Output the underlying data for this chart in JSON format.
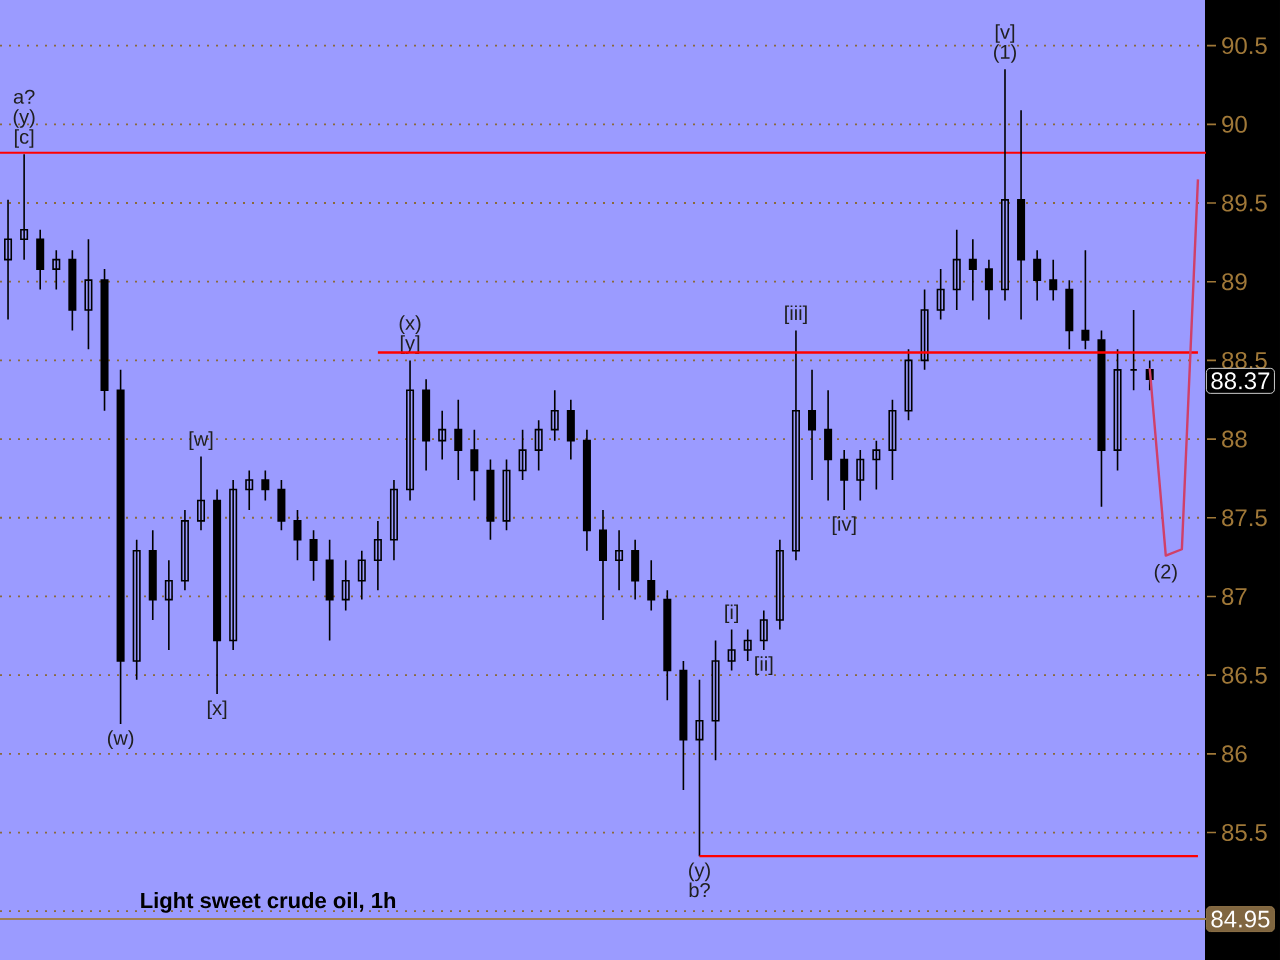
{
  "chart_data": {
    "type": "candlestick",
    "title": "Light sweet crude oil, 1h",
    "categories": [
      null,
      null,
      null,
      null,
      null,
      null,
      null,
      null,
      null,
      null,
      null,
      null,
      null,
      null,
      null,
      null,
      null,
      null,
      null,
      null,
      null,
      null,
      null,
      null,
      null,
      null,
      null,
      null,
      null,
      null,
      null,
      null,
      null,
      null,
      null,
      null,
      null,
      null,
      null,
      null,
      null,
      null,
      null,
      null,
      null,
      null,
      null,
      null,
      null,
      null,
      null,
      null,
      null,
      null,
      null,
      null,
      null,
      null,
      null,
      null,
      null,
      null,
      null,
      null,
      null,
      null,
      null,
      null,
      null,
      null,
      null,
      null,
      null,
      null,
      null
    ],
    "ohlc": [
      [
        89.14,
        89.52,
        88.76,
        89.27
      ],
      [
        89.27,
        89.81,
        89.14,
        89.33
      ],
      [
        89.27,
        89.33,
        88.95,
        89.08
      ],
      [
        89.08,
        89.2,
        88.95,
        89.14
      ],
      [
        89.14,
        89.2,
        88.69,
        88.82
      ],
      [
        88.82,
        89.27,
        88.57,
        89.01
      ],
      [
        89.01,
        89.08,
        88.18,
        88.31
      ],
      [
        88.31,
        88.44,
        86.19,
        86.59
      ],
      [
        86.59,
        87.36,
        86.47,
        87.29
      ],
      [
        87.29,
        87.42,
        86.85,
        86.98
      ],
      [
        86.98,
        87.23,
        86.66,
        87.1
      ],
      [
        87.1,
        87.55,
        87.04,
        87.48
      ],
      [
        87.48,
        87.89,
        87.42,
        87.61
      ],
      [
        87.61,
        87.68,
        86.38,
        86.72
      ],
      [
        86.72,
        87.74,
        86.66,
        87.68
      ],
      [
        87.68,
        87.8,
        87.55,
        87.74
      ],
      [
        87.74,
        87.8,
        87.61,
        87.68
      ],
      [
        87.68,
        87.74,
        87.42,
        87.48
      ],
      [
        87.48,
        87.55,
        87.23,
        87.36
      ],
      [
        87.36,
        87.42,
        87.1,
        87.23
      ],
      [
        87.23,
        87.36,
        86.72,
        86.98
      ],
      [
        86.98,
        87.23,
        86.91,
        87.1
      ],
      [
        87.1,
        87.29,
        86.98,
        87.23
      ],
      [
        87.23,
        87.48,
        87.04,
        87.36
      ],
      [
        87.36,
        87.74,
        87.23,
        87.68
      ],
      [
        87.68,
        88.5,
        87.61,
        88.31
      ],
      [
        88.31,
        88.38,
        87.8,
        87.99
      ],
      [
        87.99,
        88.18,
        87.87,
        88.06
      ],
      [
        88.06,
        88.25,
        87.74,
        87.93
      ],
      [
        87.93,
        88.06,
        87.61,
        87.8
      ],
      [
        87.8,
        87.87,
        87.36,
        87.48
      ],
      [
        87.48,
        87.87,
        87.42,
        87.8
      ],
      [
        87.8,
        88.06,
        87.74,
        87.93
      ],
      [
        87.93,
        88.12,
        87.8,
        88.06
      ],
      [
        88.06,
        88.31,
        87.99,
        88.18
      ],
      [
        88.18,
        88.25,
        87.87,
        87.99
      ],
      [
        87.99,
        88.06,
        87.29,
        87.42
      ],
      [
        87.42,
        87.55,
        86.85,
        87.23
      ],
      [
        87.23,
        87.42,
        87.04,
        87.29
      ],
      [
        87.29,
        87.36,
        86.98,
        87.1
      ],
      [
        87.1,
        87.23,
        86.91,
        86.98
      ],
      [
        86.98,
        87.04,
        86.34,
        86.53
      ],
      [
        86.53,
        86.59,
        85.77,
        86.09
      ],
      [
        86.09,
        86.47,
        85.35,
        86.21
      ],
      [
        86.21,
        86.72,
        85.96,
        86.59
      ],
      [
        86.59,
        86.79,
        86.53,
        86.66
      ],
      [
        86.66,
        86.79,
        86.59,
        86.72
      ],
      [
        86.72,
        86.91,
        86.66,
        86.85
      ],
      [
        86.85,
        87.36,
        86.79,
        87.29
      ],
      [
        87.29,
        88.69,
        87.23,
        88.18
      ],
      [
        88.18,
        88.44,
        87.74,
        88.06
      ],
      [
        88.06,
        88.31,
        87.61,
        87.87
      ],
      [
        87.87,
        87.93,
        87.55,
        87.74
      ],
      [
        87.74,
        87.93,
        87.61,
        87.87
      ],
      [
        87.87,
        87.99,
        87.68,
        87.93
      ],
      [
        87.93,
        88.25,
        87.74,
        88.18
      ],
      [
        88.18,
        88.57,
        88.12,
        88.5
      ],
      [
        88.5,
        88.95,
        88.44,
        88.82
      ],
      [
        88.82,
        89.08,
        88.76,
        88.95
      ],
      [
        88.95,
        89.33,
        88.82,
        89.14
      ],
      [
        89.14,
        89.27,
        88.88,
        89.08
      ],
      [
        89.08,
        89.14,
        88.76,
        88.95
      ],
      [
        88.95,
        90.35,
        88.88,
        89.52
      ],
      [
        89.52,
        90.09,
        88.76,
        89.14
      ],
      [
        89.14,
        89.2,
        88.88,
        89.01
      ],
      [
        89.01,
        89.14,
        88.88,
        88.95
      ],
      [
        88.95,
        89.01,
        88.57,
        88.69
      ],
      [
        88.69,
        89.2,
        88.57,
        88.63
      ],
      [
        88.63,
        88.69,
        87.57,
        87.93
      ],
      [
        87.93,
        88.57,
        87.8,
        88.44
      ],
      [
        88.44,
        88.82,
        88.31,
        88.44
      ],
      [
        88.44,
        88.5,
        88.31,
        88.38
      ],
      null,
      null,
      null
    ],
    "value_labels": [
      null,
      "a? (y) [c]",
      null,
      null,
      null,
      null,
      null,
      "(w)",
      null,
      null,
      null,
      null,
      "[w]",
      "[x]",
      null,
      null,
      null,
      null,
      null,
      null,
      null,
      null,
      null,
      null,
      null,
      "(x) [y]",
      null,
      null,
      null,
      null,
      null,
      null,
      null,
      null,
      null,
      null,
      null,
      null,
      null,
      null,
      null,
      null,
      null,
      "(y) b?",
      null,
      "[i]",
      null,
      "[ii]",
      null,
      "[iii]",
      null,
      null,
      "[iv]",
      null,
      null,
      null,
      null,
      null,
      null,
      null,
      null,
      null,
      "[v] (1)",
      null,
      null,
      null,
      null,
      null,
      null,
      null,
      null,
      null,
      null,
      null,
      null
    ],
    "color": "#000000",
    "series": [
      {
        "type": "line",
        "color": "#ff0000",
        "values": [
          null,
          null,
          null,
          null,
          null,
          null,
          null,
          null,
          null,
          null,
          null,
          null,
          null,
          null,
          null,
          null,
          null,
          null,
          null,
          null,
          null,
          null,
          null,
          88.55,
          88.55,
          88.55,
          88.55,
          88.55,
          88.55,
          88.55,
          88.55,
          88.55,
          88.55,
          88.55,
          88.55,
          88.55,
          88.55,
          88.55,
          88.55,
          88.55,
          88.55,
          88.55,
          88.55,
          88.55,
          88.55,
          88.55,
          88.55,
          88.55,
          88.55,
          88.55,
          88.55,
          88.55,
          88.55,
          88.55,
          88.55,
          88.55,
          88.55,
          88.55,
          88.55,
          88.55,
          88.55,
          88.55,
          88.55,
          88.55,
          88.55,
          88.55,
          88.55,
          88.55,
          88.55,
          88.55,
          88.55,
          88.55,
          88.55,
          88.55,
          88.55
        ]
      },
      {
        "type": "line",
        "color": "#ff0000",
        "values": [
          null,
          null,
          null,
          null,
          null,
          null,
          null,
          null,
          null,
          null,
          null,
          null,
          null,
          null,
          null,
          null,
          null,
          null,
          null,
          null,
          null,
          null,
          null,
          null,
          null,
          null,
          null,
          null,
          null,
          null,
          null,
          null,
          null,
          null,
          null,
          null,
          null,
          null,
          null,
          null,
          null,
          null,
          null,
          85.35,
          85.35,
          85.35,
          85.35,
          85.35,
          85.35,
          85.35,
          85.35,
          85.35,
          85.35,
          85.35,
          85.35,
          85.35,
          85.35,
          85.35,
          85.35,
          85.35,
          85.35,
          85.35,
          85.35,
          85.35,
          85.35,
          85.35,
          85.35,
          85.35,
          85.35,
          85.35,
          85.35,
          85.35,
          85.35,
          85.35,
          85.35
        ]
      },
      {
        "type": "line",
        "name": "(2)",
        "color": "#d04068",
        "values": [
          null,
          null,
          null,
          null,
          null,
          null,
          null,
          null,
          null,
          null,
          null,
          null,
          null,
          null,
          null,
          null,
          null,
          null,
          null,
          null,
          null,
          null,
          null,
          null,
          null,
          null,
          null,
          null,
          null,
          null,
          null,
          null,
          null,
          null,
          null,
          null,
          null,
          null,
          null,
          null,
          null,
          null,
          null,
          null,
          null,
          null,
          null,
          null,
          null,
          null,
          null,
          null,
          null,
          null,
          null,
          null,
          null,
          null,
          null,
          null,
          null,
          null,
          null,
          null,
          null,
          null,
          null,
          null,
          null,
          null,
          null,
          88.45,
          87.26,
          87.3,
          89.65
        ]
      }
    ],
    "ref_lines": [
      {
        "axis": "y",
        "value": 89.82,
        "color": "#ff0000"
      },
      {
        "axis": "y",
        "value": 84.95,
        "label": "84.95",
        "color": "#a08050"
      }
    ],
    "annotations": [
      {
        "text": "88.37",
        "y": 88.37
      }
    ],
    "ylim": [
      84.69,
      90.79
    ],
    "yticks": [
      {
        "value": 85,
        "label": null
      },
      {
        "value": 85.5,
        "label": "85.5"
      },
      {
        "value": 86,
        "label": "86"
      },
      {
        "value": 86.5,
        "label": "86.5"
      },
      {
        "value": 87,
        "label": "87"
      },
      {
        "value": 87.5,
        "label": "87.5"
      },
      {
        "value": 88,
        "label": "88"
      },
      {
        "value": 88.5,
        "label": "88.5"
      },
      {
        "value": 89,
        "label": "89"
      },
      {
        "value": 89.5,
        "label": "89.5"
      },
      {
        "value": 90,
        "label": "90"
      },
      {
        "value": 90.5,
        "label": "90.5"
      }
    ],
    "grid": "y"
  }
}
